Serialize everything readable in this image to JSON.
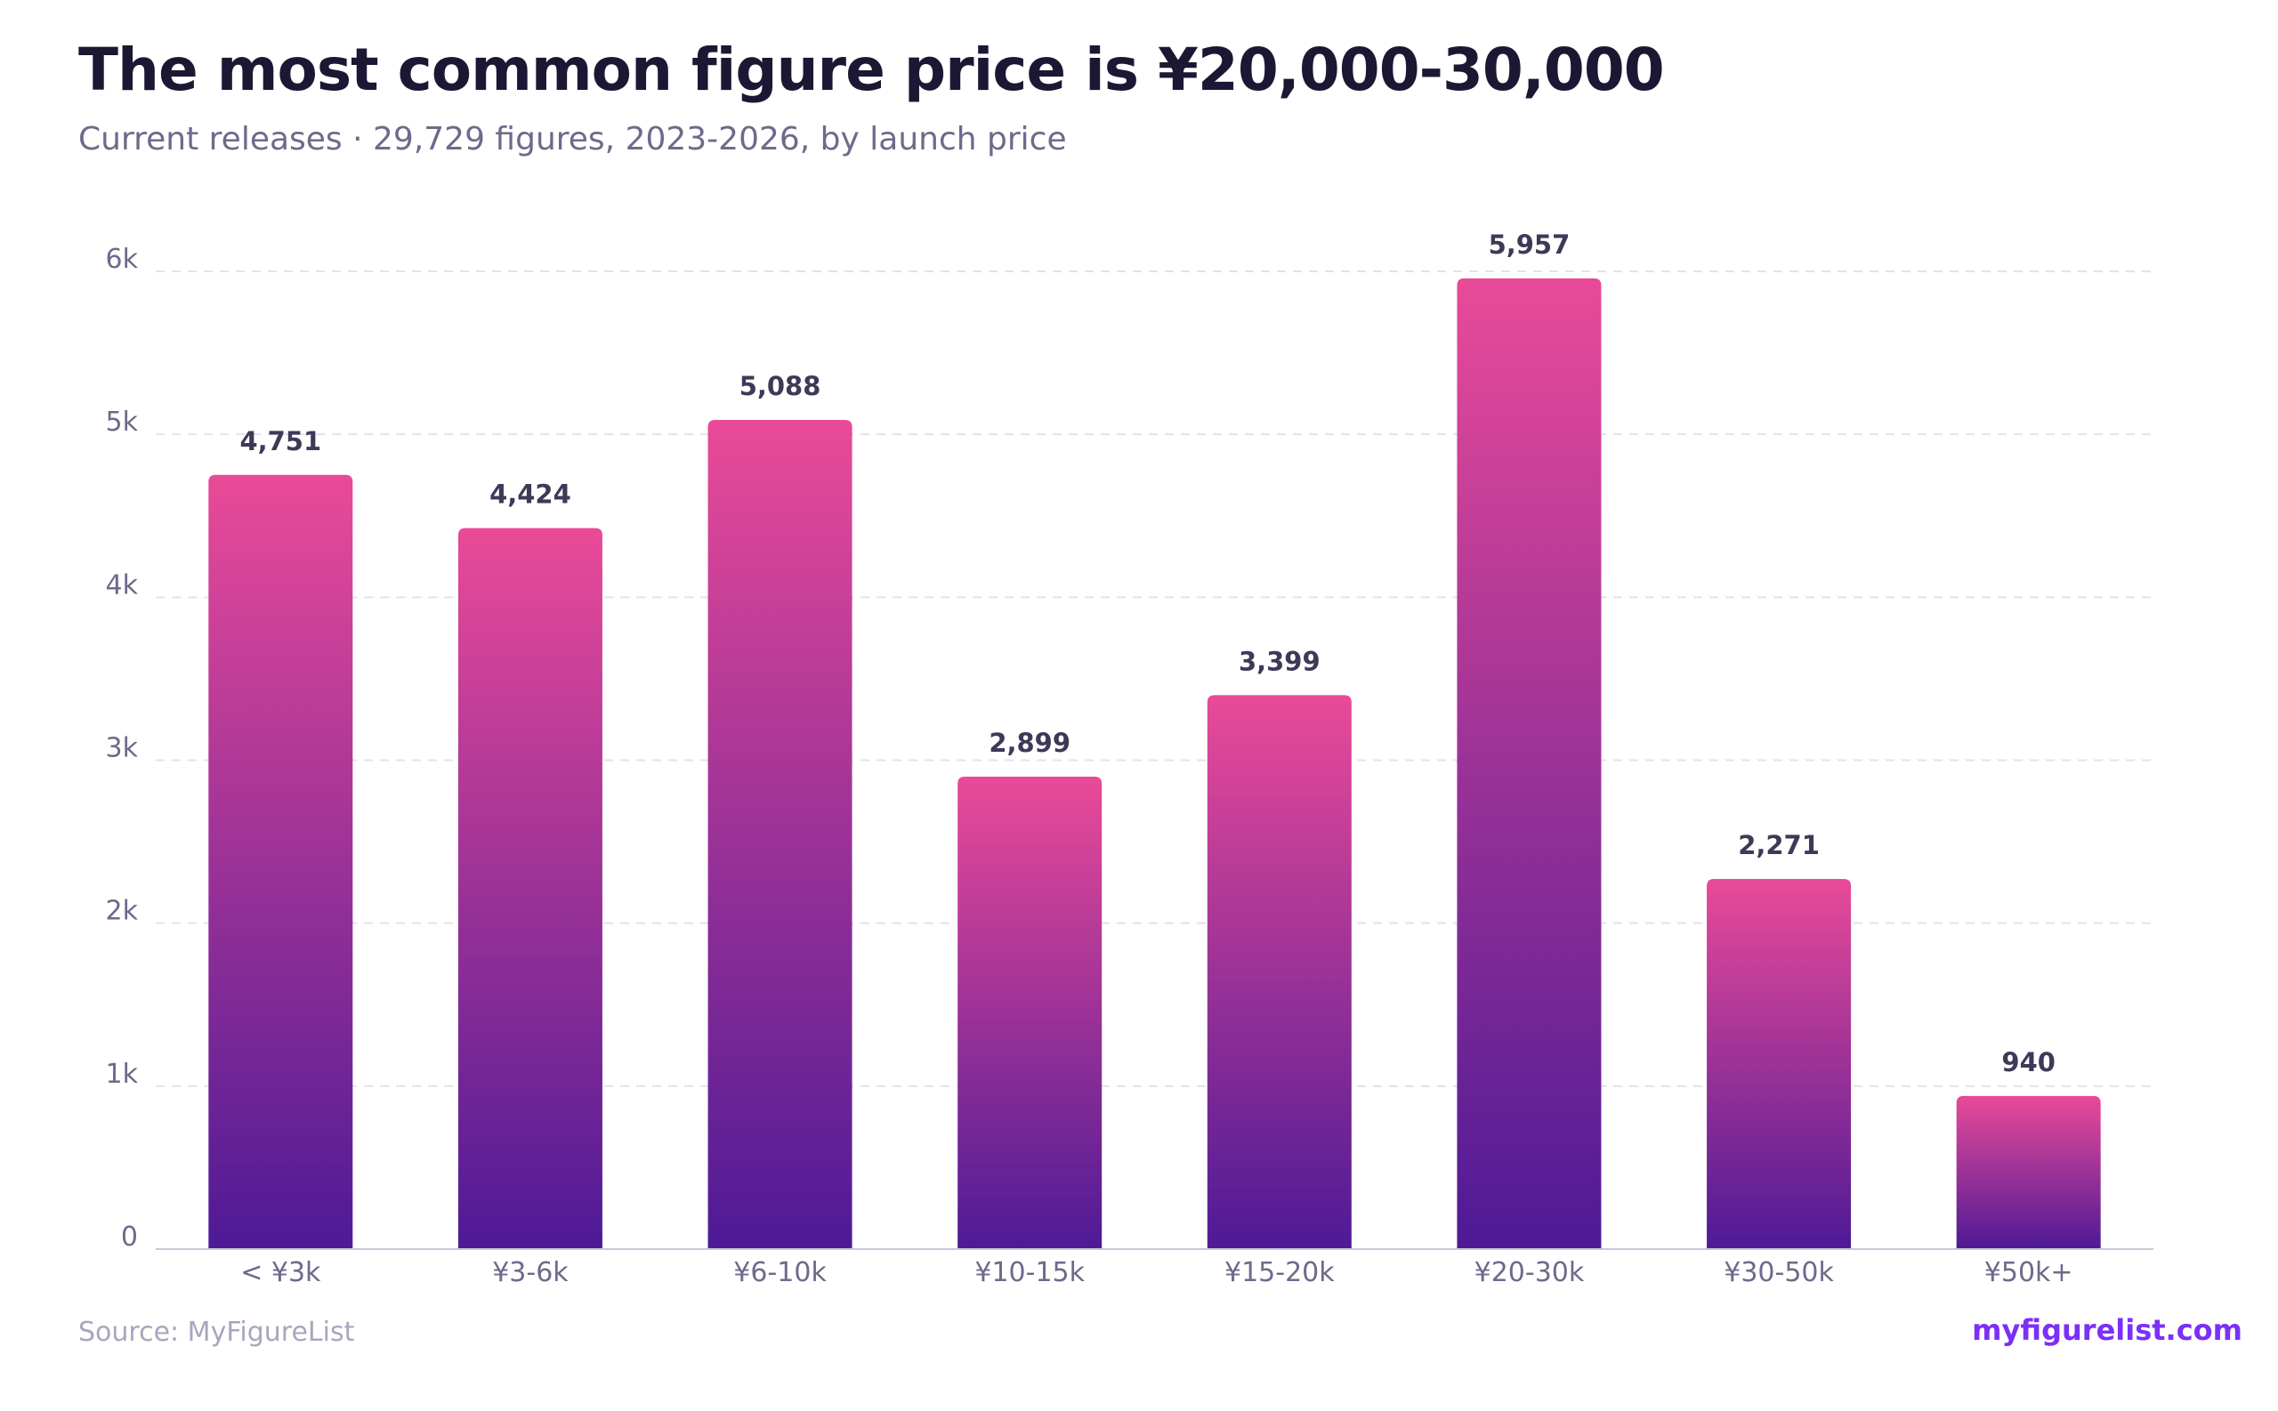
{
  "title": "The most common figure price is ¥20,000-30,000",
  "subtitle": "Current releases · 29,729 figures, 2023-2026, by launch price",
  "source": "Source: MyFigureList",
  "brand": "myfigurelist.com",
  "colors": {
    "bar_top": "#e94a98",
    "bar_bottom": "#4e1a96",
    "grid": "#e3e1ec",
    "axis": "#c9c6d9",
    "tick_text": "#6d6a8a",
    "value_text": "#3d3a58"
  },
  "chart_data": {
    "type": "bar",
    "title": "The most common figure price is ¥20,000-30,000",
    "subtitle": "Current releases · 29,729 figures, 2023-2026, by launch price",
    "categories": [
      "< ¥3k",
      "¥3-6k",
      "¥6-10k",
      "¥10-15k",
      "¥15-20k",
      "¥20-30k",
      "¥30-50k",
      "¥50k+"
    ],
    "values": [
      4751,
      4424,
      5088,
      2899,
      3399,
      5957,
      2271,
      940
    ],
    "value_labels": [
      "4,751",
      "4,424",
      "5,088",
      "2,899",
      "3,399",
      "5,957",
      "2,271",
      "940"
    ],
    "xlabel": "",
    "ylabel": "",
    "ylim": [
      0,
      6000
    ],
    "yticks": [
      0,
      1000,
      2000,
      3000,
      4000,
      5000,
      6000
    ],
    "ytick_labels": [
      "0",
      "1k",
      "2k",
      "3k",
      "4k",
      "5k",
      "6k"
    ],
    "grid": true,
    "legend": false
  }
}
